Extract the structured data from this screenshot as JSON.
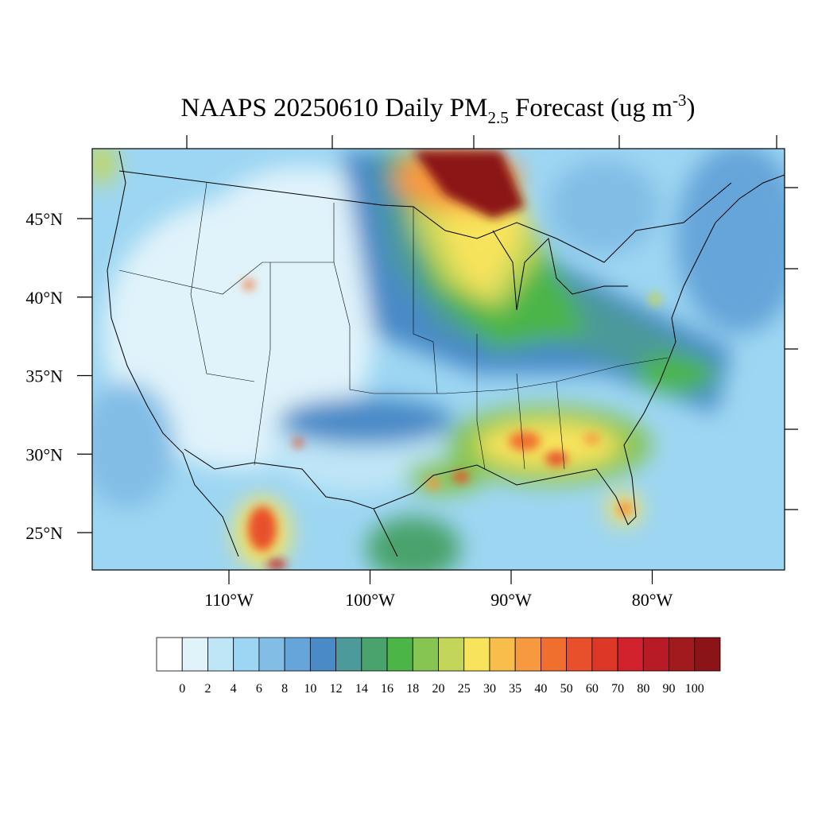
{
  "map": {
    "title": {
      "main": "NAAPS 20250610 Daily PM",
      "subscript": "2.5",
      "middle": " Forecast (ug m",
      "superscript": "-3",
      "end": ")"
    },
    "lat_ticks": [
      {
        "value": 45,
        "label": "45°N"
      },
      {
        "value": 40,
        "label": "40°N"
      },
      {
        "value": 35,
        "label": "35°N"
      },
      {
        "value": 30,
        "label": "30°N"
      },
      {
        "value": 25,
        "label": "25°N"
      }
    ],
    "lon_ticks": [
      {
        "value": -110,
        "label": "110°W"
      },
      {
        "value": -100,
        "label": "100°W"
      },
      {
        "value": -90,
        "label": "90°W"
      },
      {
        "value": -80,
        "label": "80°W"
      }
    ],
    "colorbar": {
      "levels": [
        0,
        2,
        4,
        6,
        8,
        10,
        12,
        14,
        16,
        18,
        20,
        25,
        30,
        35,
        40,
        50,
        60,
        70,
        80,
        90,
        100
      ],
      "colors": [
        "#ffffff",
        "#e0f3fb",
        "#bfe6f7",
        "#9dd6f2",
        "#82bde6",
        "#66a5d9",
        "#4a8ac7",
        "#4c9a9a",
        "#4aa36c",
        "#4cb548",
        "#86c552",
        "#c3d65a",
        "#f7e35c",
        "#f8bd4a",
        "#f6993f",
        "#f16f2e",
        "#e8502c",
        "#dd3728",
        "#d0212c",
        "#b81b25",
        "#a01a1e",
        "#8b1418"
      ]
    }
  }
}
